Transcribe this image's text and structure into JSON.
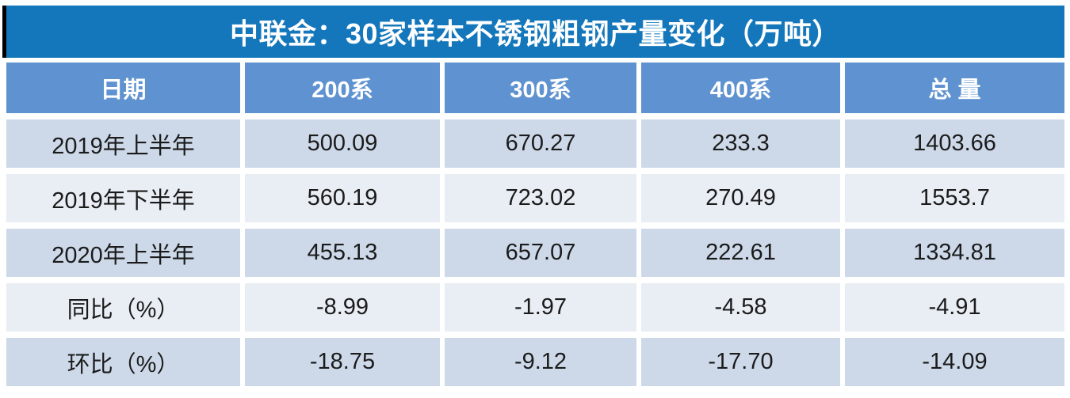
{
  "title": "中联金：30家样本不锈钢粗钢产量变化（万吨）",
  "table": {
    "header": [
      "日期",
      "200系",
      "300系",
      "400系",
      "总 量"
    ],
    "rows": [
      {
        "cells": [
          "2019年上半年",
          "500.09",
          "670.27",
          "233.3",
          "1403.66"
        ]
      },
      {
        "cells": [
          "2019年下半年",
          "560.19",
          "723.02",
          "270.49",
          "1553.7"
        ]
      },
      {
        "cells": [
          "2020年上半年",
          "455.13",
          "657.07",
          "222.61",
          "1334.81"
        ]
      },
      {
        "cells": [
          "同比（%）",
          "-8.99",
          "-1.97",
          "-4.58",
          "-4.91"
        ]
      },
      {
        "cells": [
          "环比（%）",
          "-18.75",
          "-9.12",
          "-17.70",
          "-14.09"
        ]
      }
    ]
  },
  "chart_data": {
    "type": "table",
    "title": "中联金：30家样本不锈钢粗钢产量变化（万吨）",
    "unit": "万吨",
    "columns": [
      "日期",
      "200系",
      "300系",
      "400系",
      "总量"
    ],
    "rows": [
      {
        "日期": "2019年上半年",
        "200系": 500.09,
        "300系": 670.27,
        "400系": 233.3,
        "总量": 1403.66
      },
      {
        "日期": "2019年下半年",
        "200系": 560.19,
        "300系": 723.02,
        "400系": 270.49,
        "总量": 1553.7
      },
      {
        "日期": "2020年上半年",
        "200系": 455.13,
        "300系": 657.07,
        "400系": 222.61,
        "总量": 1334.81
      },
      {
        "日期": "同比（%）",
        "200系": -8.99,
        "300系": -1.97,
        "400系": -4.58,
        "总量": -4.91
      },
      {
        "日期": "环比（%）",
        "200系": -18.75,
        "300系": -9.12,
        "400系": -17.7,
        "总量": -14.09
      }
    ]
  },
  "colors": {
    "title_bg": "#1477bb",
    "header_bg": "#5f92d0",
    "row_odd": "#cdd9e9",
    "row_even": "#e9edf4",
    "header_text": "#ffffff",
    "cell_text": "#1b1b1b",
    "accent_bar": "#000000"
  }
}
